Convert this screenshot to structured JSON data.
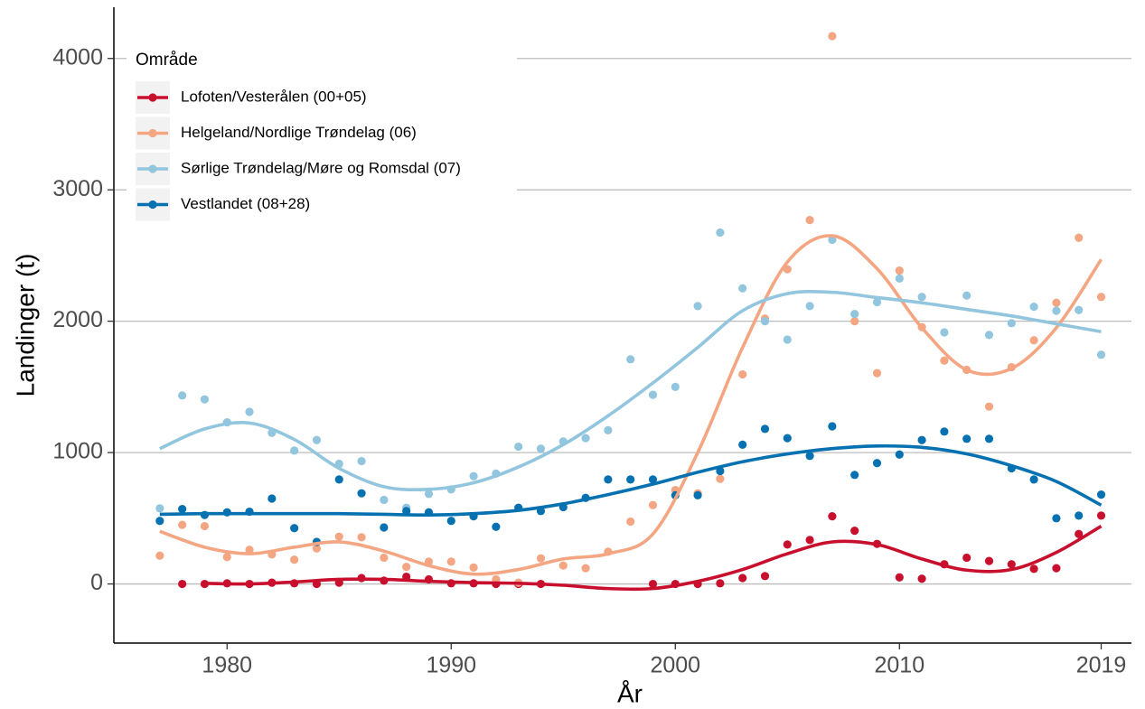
{
  "chart_data": {
    "type": "scatter-smooth",
    "x_label": "År",
    "y_label": "Landinger (t)",
    "legend_title": "Område",
    "legend_position": "top-left",
    "xlim": [
      1974.95,
      2020.35
    ],
    "ylim": [
      -450,
      4390
    ],
    "xticks": [
      1980,
      1990,
      2000,
      2010,
      2019
    ],
    "yticks": [
      0,
      1000,
      2000,
      3000,
      4000
    ],
    "grid": true,
    "x": [
      1977,
      1978,
      1979,
      1980,
      1981,
      1982,
      1983,
      1984,
      1985,
      1986,
      1987,
      1988,
      1989,
      1990,
      1991,
      1992,
      1993,
      1994,
      1995,
      1996,
      1997,
      1998,
      1999,
      2000,
      2001,
      2002,
      2003,
      2004,
      2005,
      2006,
      2007,
      2008,
      2009,
      2010,
      2011,
      2012,
      2013,
      2014,
      2015,
      2016,
      2017,
      2018,
      2019
    ],
    "trend_x": [
      1977,
      1979,
      1981,
      1983,
      1985,
      1987,
      1989,
      1991,
      1993,
      1995,
      1997,
      1999,
      2001,
      2003,
      2005,
      2007,
      2009,
      2011,
      2013,
      2015,
      2017,
      2019
    ],
    "series": [
      {
        "name": "Lofoten/Vesterålen (00+05)",
        "color": "#c8102e",
        "values": [
          null,
          0,
          0,
          5,
          0,
          10,
          5,
          0,
          10,
          45,
          25,
          55,
          35,
          5,
          5,
          0,
          0,
          0,
          null,
          null,
          null,
          null,
          0,
          0,
          0,
          5,
          45,
          60,
          300,
          335,
          515,
          405,
          305,
          50,
          40,
          150,
          200,
          175,
          150,
          115,
          120,
          380,
          520
        ],
        "trend": [
          null,
          5,
          0,
          15,
          35,
          35,
          20,
          10,
          5,
          -10,
          -35,
          -35,
          20,
          110,
          230,
          320,
          300,
          190,
          105,
          110,
          240,
          440
        ]
      },
      {
        "name": "Helgeland/Nordlige Trøndelag (06)",
        "color": "#f4a582",
        "values": [
          215,
          450,
          440,
          205,
          260,
          225,
          185,
          270,
          360,
          355,
          200,
          130,
          170,
          170,
          125,
          35,
          10,
          195,
          140,
          120,
          245,
          475,
          600,
          715,
          690,
          800,
          1595,
          2020,
          2395,
          2770,
          4170,
          2000,
          1605,
          2385,
          1955,
          1700,
          1630,
          1350,
          1650,
          1855,
          2140,
          2635,
          2185
        ],
        "trend": [
          400,
          280,
          230,
          280,
          320,
          250,
          140,
          75,
          110,
          190,
          230,
          380,
          1000,
          1800,
          2450,
          2650,
          2400,
          1950,
          1630,
          1640,
          1950,
          2470
        ]
      },
      {
        "name": "Sørlige Trøndelag/Møre og Romsdal (07)",
        "color": "#92c5de",
        "values": [
          575,
          1435,
          1405,
          1230,
          1310,
          1150,
          1015,
          1095,
          915,
          935,
          640,
          580,
          685,
          720,
          820,
          840,
          1045,
          1030,
          1085,
          1110,
          1170,
          1710,
          1440,
          1500,
          2115,
          2675,
          2250,
          2000,
          1860,
          2115,
          2620,
          2055,
          2145,
          2325,
          2185,
          1915,
          2195,
          1895,
          1985,
          2110,
          2080,
          2085,
          1745
        ],
        "trend": [
          1030,
          1180,
          1225,
          1100,
          880,
          740,
          720,
          770,
          890,
          1060,
          1280,
          1530,
          1800,
          2080,
          2210,
          2220,
          2180,
          2140,
          2090,
          2040,
          1980,
          1920
        ]
      },
      {
        "name": "Vestlandet (08+28)",
        "color": "#0571b0",
        "values": [
          480,
          570,
          525,
          545,
          550,
          650,
          425,
          320,
          795,
          690,
          430,
          555,
          545,
          480,
          515,
          435,
          580,
          555,
          585,
          655,
          795,
          795,
          795,
          675,
          675,
          860,
          1060,
          1180,
          1110,
          975,
          1200,
          830,
          920,
          985,
          1095,
          1160,
          1105,
          1105,
          880,
          795,
          500,
          520,
          680
        ],
        "trend": [
          530,
          535,
          535,
          535,
          535,
          530,
          525,
          535,
          560,
          610,
          680,
          760,
          850,
          930,
          990,
          1030,
          1050,
          1040,
          990,
          900,
          780,
          600
        ]
      }
    ]
  }
}
